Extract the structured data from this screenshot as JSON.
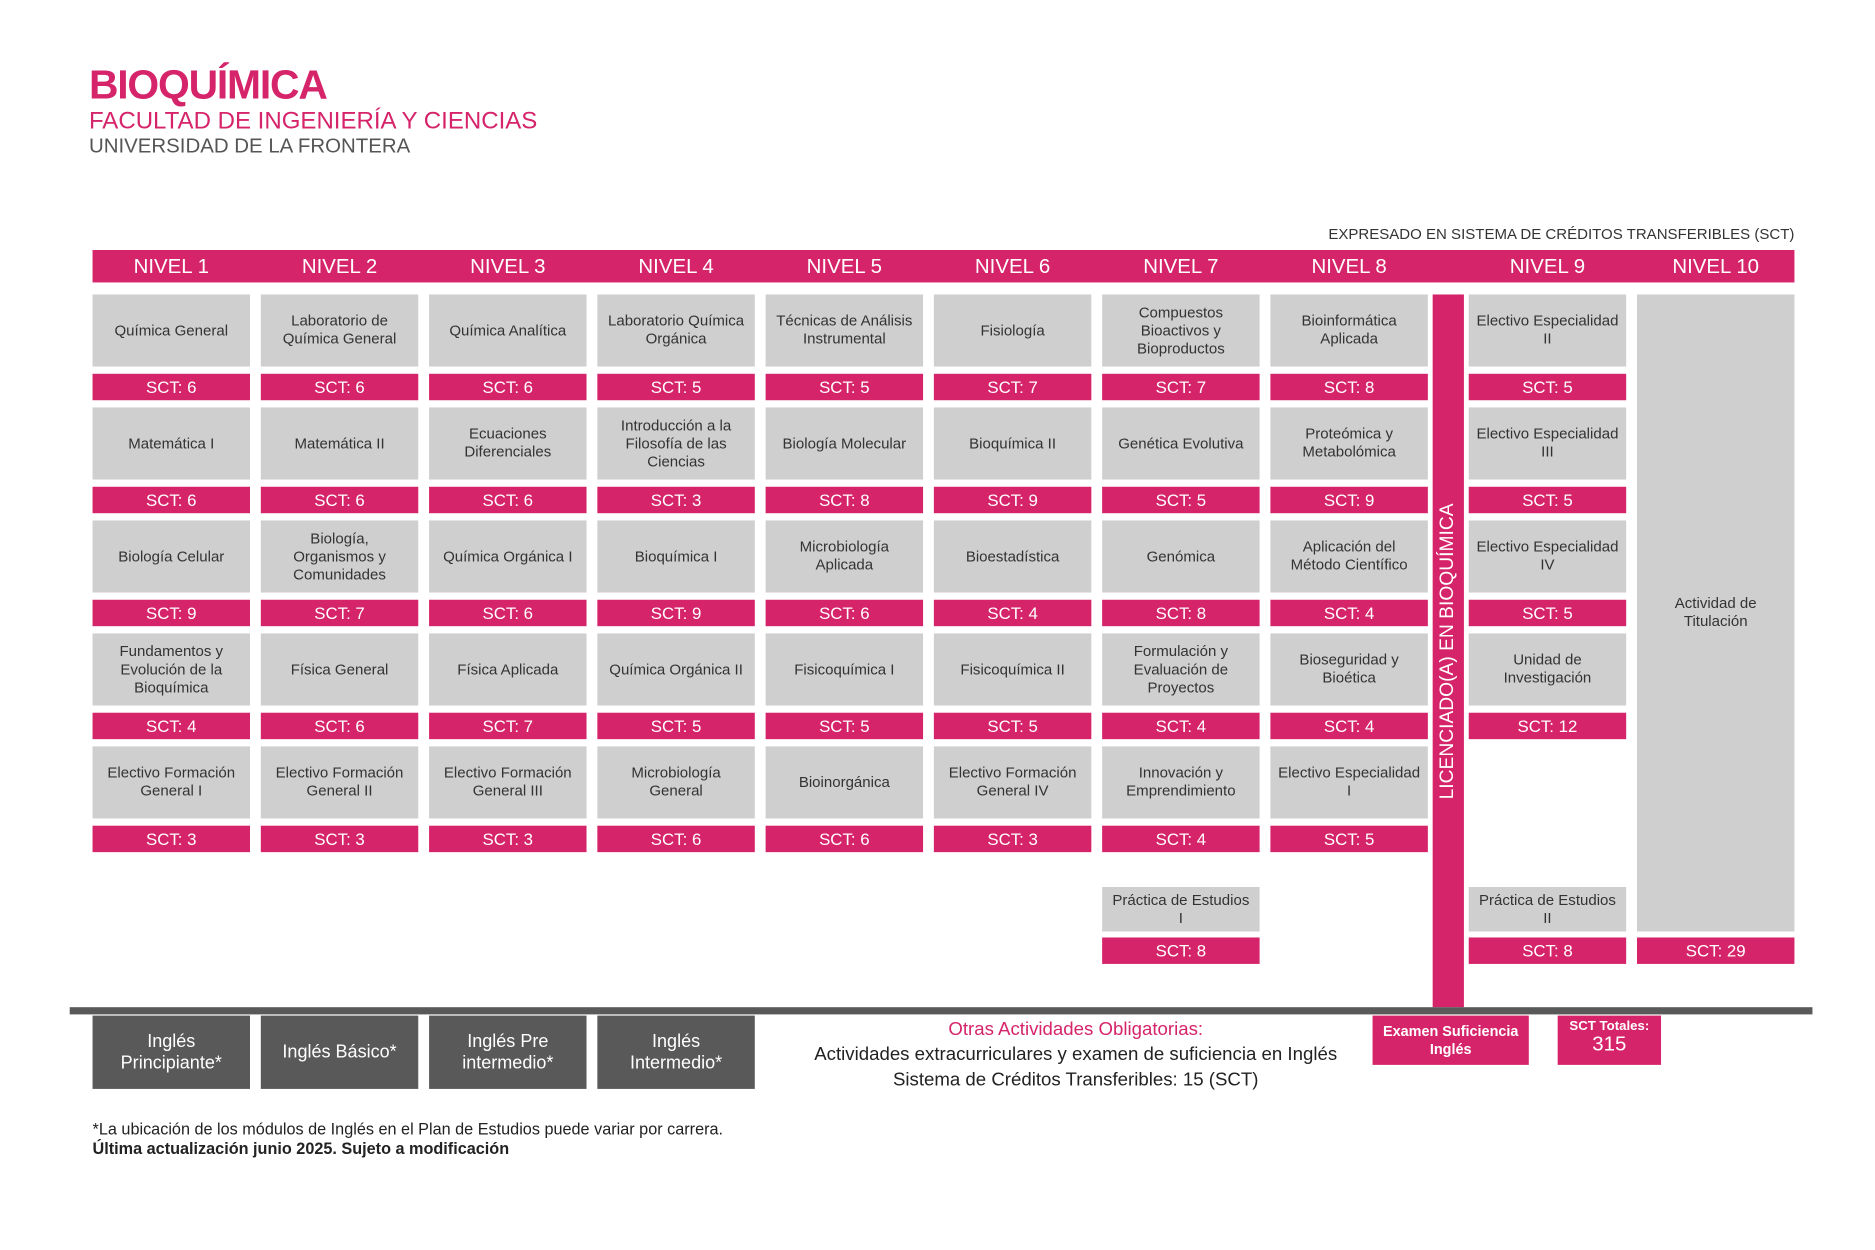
{
  "header": {
    "title": "BIOQUÍMICA",
    "faculty": "FACULTAD DE INGENIERÍA Y CIENCIAS",
    "university": "UNIVERSIDAD DE LA FRONTERA",
    "credits_note": "EXPRESADO EN SISTEMA DE CRÉDITOS TRANSFERIBLES (SCT)"
  },
  "colors": {
    "accent": "#d6246a",
    "course_bg": "#cfcfcf",
    "dark": "#595959"
  },
  "levels": [
    {
      "name": "NIVEL 1",
      "courses": [
        {
          "name": "Química General",
          "sct": "SCT: 6"
        },
        {
          "name": "Matemática I",
          "sct": "SCT: 6"
        },
        {
          "name": "Biología Celular",
          "sct": "SCT: 9"
        },
        {
          "name": "Fundamentos y Evolución de la Bioquímica",
          "sct": "SCT: 4"
        },
        {
          "name": "Electivo Formación General I",
          "sct": "SCT: 3"
        }
      ]
    },
    {
      "name": "NIVEL 2",
      "courses": [
        {
          "name": "Laboratorio de Química General",
          "sct": "SCT: 6"
        },
        {
          "name": "Matemática II",
          "sct": "SCT: 6"
        },
        {
          "name": "Biología, Organismos y Comunidades",
          "sct": "SCT: 7"
        },
        {
          "name": "Física General",
          "sct": "SCT: 6"
        },
        {
          "name": "Electivo Formación General II",
          "sct": "SCT: 3"
        }
      ]
    },
    {
      "name": "NIVEL 3",
      "courses": [
        {
          "name": "Química Analítica",
          "sct": "SCT: 6"
        },
        {
          "name": "Ecuaciones Diferenciales",
          "sct": "SCT: 6"
        },
        {
          "name": "Química Orgánica I",
          "sct": "SCT: 6"
        },
        {
          "name": "Física Aplicada",
          "sct": "SCT: 7"
        },
        {
          "name": "Electivo Formación General III",
          "sct": "SCT: 3"
        }
      ]
    },
    {
      "name": "NIVEL 4",
      "courses": [
        {
          "name": "Laboratorio Química Orgánica",
          "sct": "SCT: 5"
        },
        {
          "name": "Introducción a la Filosofía de las Ciencias",
          "sct": "SCT: 3"
        },
        {
          "name": "Bioquímica I",
          "sct": "SCT: 9"
        },
        {
          "name": "Química Orgánica II",
          "sct": "SCT: 5"
        },
        {
          "name": "Microbiología General",
          "sct": "SCT: 6"
        }
      ]
    },
    {
      "name": "NIVEL 5",
      "courses": [
        {
          "name": "Técnicas de Análisis Instrumental",
          "sct": "SCT: 5"
        },
        {
          "name": "Biología Molecular",
          "sct": "SCT: 8"
        },
        {
          "name": "Microbiología Aplicada",
          "sct": "SCT: 6"
        },
        {
          "name": "Fisicoquímica I",
          "sct": "SCT: 5"
        },
        {
          "name": "Bioinorgánica",
          "sct": "SCT: 6"
        }
      ]
    },
    {
      "name": "NIVEL 6",
      "courses": [
        {
          "name": "Fisiología",
          "sct": "SCT: 7"
        },
        {
          "name": "Bioquímica II",
          "sct": "SCT: 9"
        },
        {
          "name": "Bioestadística",
          "sct": "SCT: 4"
        },
        {
          "name": "Fisicoquímica II",
          "sct": "SCT: 5"
        },
        {
          "name": "Electivo Formación General IV",
          "sct": "SCT: 3"
        }
      ]
    },
    {
      "name": "NIVEL 7",
      "courses": [
        {
          "name": "Compuestos Bioactivos y Bioproductos",
          "sct": "SCT: 7"
        },
        {
          "name": "Genética Evolutiva",
          "sct": "SCT: 5"
        },
        {
          "name": "Genómica",
          "sct": "SCT: 8"
        },
        {
          "name": "Formulación y Evaluación de Proyectos",
          "sct": "SCT: 4"
        },
        {
          "name": "Innovación y Emprendimiento",
          "sct": "SCT: 4"
        }
      ],
      "practice": {
        "name": "Práctica de Estudios I",
        "sct": "SCT: 8"
      }
    },
    {
      "name": "NIVEL 8",
      "courses": [
        {
          "name": "Bioinformática Aplicada",
          "sct": "SCT: 8"
        },
        {
          "name": "Proteómica y Metabolómica",
          "sct": "SCT: 9"
        },
        {
          "name": "Aplicación del Método Científico",
          "sct": "SCT: 4"
        },
        {
          "name": "Bioseguridad y Bioética",
          "sct": "SCT: 4"
        },
        {
          "name": "Electivo Especialidad I",
          "sct": "SCT: 5"
        }
      ]
    },
    {
      "name": "NIVEL 9",
      "courses": [
        {
          "name": "Electivo Especialidad II",
          "sct": "SCT: 5"
        },
        {
          "name": "Electivo Especialidad III",
          "sct": "SCT: 5"
        },
        {
          "name": "Electivo Especialidad IV",
          "sct": "SCT: 5"
        },
        {
          "name": "Unidad de Investigación",
          "sct": "SCT: 12"
        }
      ],
      "practice": {
        "name": "Práctica de Estudios II",
        "sct": "SCT: 8"
      }
    },
    {
      "name": "NIVEL 10",
      "courses": [],
      "final": {
        "name": "Actividad de Titulación",
        "sct": "SCT: 29"
      }
    }
  ],
  "degree_label": "LICENCIADO(A) EN BIOQUÍMICA",
  "english": [
    "Inglés Principiante*",
    "Inglés Básico*",
    "Inglés Pre intermedio*",
    "Inglés Intermedio*"
  ],
  "other": {
    "title": "Otras Actividades Obligatorias:",
    "line1": "Actividades extracurriculares y examen de suficiencia en Inglés",
    "line2": "Sistema de Créditos Transferibles: 15 (SCT)"
  },
  "exam": "Examen Suficiencia Inglés",
  "totals": {
    "label": "SCT Totales:",
    "value": "315"
  },
  "footer": {
    "note": "*La ubicación de los módulos de Inglés en el Plan de Estudios puede variar por carrera.",
    "updated": "Última actualización junio 2025. Sujeto a modificación"
  }
}
